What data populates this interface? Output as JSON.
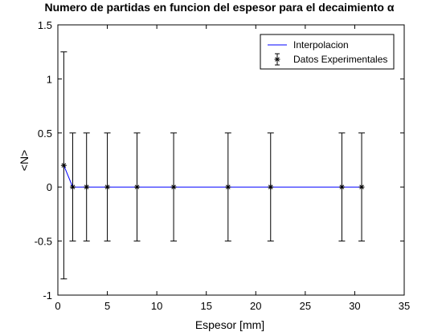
{
  "chart_data": {
    "type": "line",
    "title": "Numero de partidas en funcion del espesor para el decaimiento α",
    "xlabel": "Espesor [mm]",
    "ylabel": "<N>",
    "xlim": [
      0,
      35
    ],
    "ylim": [
      -1,
      1.5
    ],
    "xticks": [
      0,
      5,
      10,
      15,
      20,
      25,
      30,
      35
    ],
    "xtick_labels": [
      "0",
      "5",
      "10",
      "15",
      "20",
      "25",
      "30",
      "35"
    ],
    "yticks": [
      -1,
      -0.5,
      0,
      0.5,
      1,
      1.5
    ],
    "ytick_labels": [
      "-1",
      "-0.5",
      "0",
      "0.5",
      "1",
      "1.5"
    ],
    "grid": false,
    "legend_position": "top-right",
    "series": [
      {
        "name": "Interpolacion",
        "kind": "line",
        "color": "#0000ff",
        "x": [
          0.6,
          1.5,
          2.9,
          5.0,
          8.0,
          11.7,
          17.2,
          21.5,
          28.7,
          30.7
        ],
        "y": [
          0.2,
          0,
          0,
          0,
          0,
          0,
          0,
          0,
          0,
          0
        ]
      },
      {
        "name": "Datos Experimentales",
        "kind": "errorbar",
        "color": "#000000",
        "marker": "asterisk",
        "x": [
          0.6,
          1.5,
          2.9,
          5.0,
          8.0,
          11.7,
          17.2,
          21.5,
          28.7,
          30.7
        ],
        "y": [
          0.2,
          0,
          0,
          0,
          0,
          0,
          0,
          0,
          0,
          0
        ],
        "error": [
          1.05,
          0.5,
          0.5,
          0.5,
          0.5,
          0.5,
          0.5,
          0.5,
          0.5,
          0.5
        ]
      }
    ]
  }
}
